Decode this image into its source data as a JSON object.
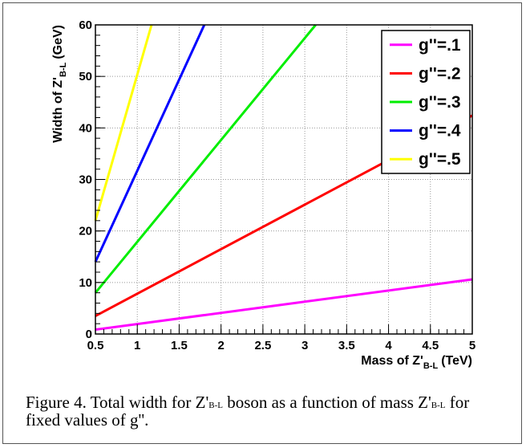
{
  "chart_data": {
    "type": "line",
    "xlabel": "Mass of Z'",
    "xlabel_sub": "B-L",
    "xlabel_unit": "(TeV)",
    "ylabel": "Width of Z'",
    "ylabel_sub": "B-L",
    "ylabel_unit": "(GeV)",
    "xlim": [
      0.5,
      5
    ],
    "ylim": [
      0,
      60
    ],
    "xticks": [
      "0.5",
      "1",
      "1.5",
      "2",
      "2.5",
      "3",
      "3.5",
      "4",
      "4.5",
      "5"
    ],
    "yticks": [
      "0",
      "10",
      "20",
      "30",
      "40",
      "50",
      "60"
    ],
    "grid": true,
    "legend_position": "top-right",
    "series": [
      {
        "name": "g''=.1",
        "color": "#ff00ff",
        "x": [
          0.5,
          5
        ],
        "y": [
          0.85,
          10.6
        ]
      },
      {
        "name": "g''=.2",
        "color": "#ff0000",
        "x": [
          0.5,
          5
        ],
        "y": [
          3.5,
          42.4
        ]
      },
      {
        "name": "g''=.3",
        "color": "#00ee00",
        "x": [
          0.5,
          3.13
        ],
        "y": [
          8.0,
          60
        ]
      },
      {
        "name": "g''=.4",
        "color": "#0000ff",
        "x": [
          0.5,
          1.8
        ],
        "y": [
          14.0,
          60
        ]
      },
      {
        "name": "g''=.5",
        "color": "#ffff00",
        "x": [
          0.5,
          1.17
        ],
        "y": [
          22.0,
          60
        ]
      }
    ]
  },
  "caption": {
    "prefix": "Figure 4. Total width for Z'",
    "sub1": "B-L",
    "middle": " boson as a function of mass Z'",
    "sub2": "B-L",
    "suffix": " for fixed values of g''."
  }
}
